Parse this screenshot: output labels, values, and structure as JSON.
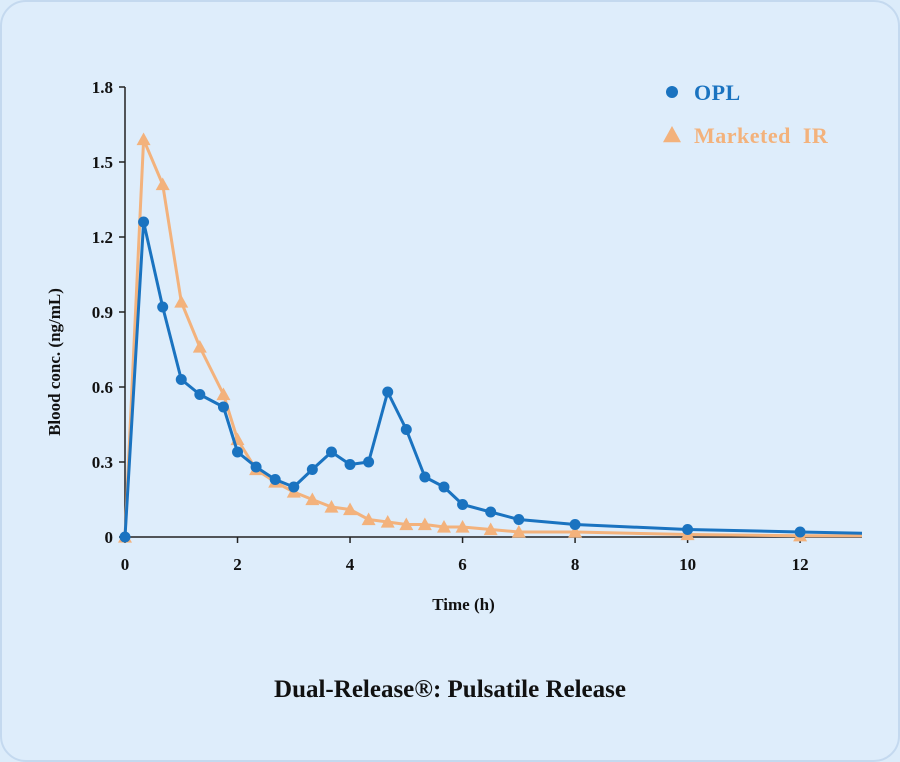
{
  "caption": "Dual-Release®: Pulsatile Release",
  "chart_data": {
    "type": "line",
    "xlabel": "Time (h)",
    "ylabel": "Blood conc. (ng/mL)",
    "xlim": [
      0,
      13.1
    ],
    "ylim": [
      0,
      1.8
    ],
    "xticks": [
      0,
      2,
      4,
      6,
      8,
      10,
      12
    ],
    "yticks": [
      0,
      0.3,
      0.6,
      0.9,
      1.2,
      1.5,
      1.8
    ],
    "ytick_labels": [
      "0",
      "0.3",
      "0.6",
      "0.9",
      "1.2",
      "1.5",
      "1.8"
    ],
    "grid": false,
    "legend_position": "top-right",
    "series": [
      {
        "name": "OPL",
        "color": "#1a73c0",
        "marker": "circle",
        "x": [
          0,
          0.33,
          0.67,
          1,
          1.33,
          1.75,
          2,
          2.33,
          2.67,
          3,
          3.33,
          3.67,
          4,
          4.33,
          4.67,
          5,
          5.33,
          5.67,
          6,
          6.5,
          7,
          8,
          10,
          12,
          13.1
        ],
        "y": [
          0,
          1.26,
          0.92,
          0.63,
          0.57,
          0.52,
          0.34,
          0.28,
          0.23,
          0.2,
          0.27,
          0.34,
          0.29,
          0.3,
          0.58,
          0.43,
          0.24,
          0.2,
          0.13,
          0.1,
          0.07,
          0.05,
          0.03,
          0.02,
          0.015
        ],
        "markers_until": 12
      },
      {
        "name": "Marketed  IR",
        "color": "#f3b27c",
        "marker": "triangle",
        "x": [
          0,
          0.33,
          0.67,
          1,
          1.33,
          1.75,
          2,
          2.33,
          2.67,
          3,
          3.33,
          3.67,
          4,
          4.33,
          4.67,
          5,
          5.33,
          5.67,
          6,
          6.5,
          7,
          8,
          10,
          12,
          13.1
        ],
        "y": [
          0,
          1.59,
          1.41,
          0.94,
          0.76,
          0.57,
          0.39,
          0.27,
          0.22,
          0.18,
          0.15,
          0.12,
          0.11,
          0.07,
          0.06,
          0.05,
          0.05,
          0.04,
          0.04,
          0.03,
          0.02,
          0.02,
          0.01,
          0.005,
          0.005
        ],
        "markers_until": 12
      }
    ]
  }
}
